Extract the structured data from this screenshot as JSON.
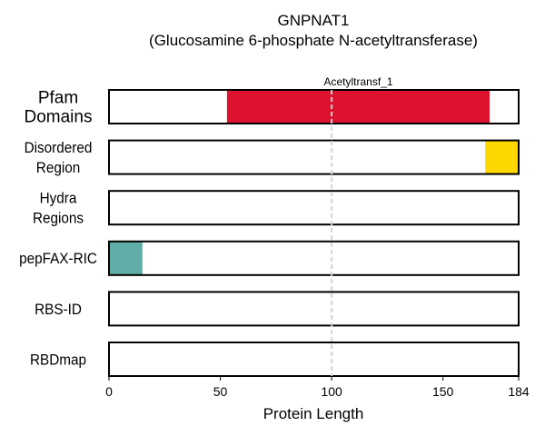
{
  "chart_data": {
    "type": "bar",
    "title": "GNPNAT1",
    "subtitle": "(Glucosamine 6-phosphate N-acetyltransferase)",
    "xlabel": "Protein Length",
    "xlim": [
      0,
      184
    ],
    "xticks": [
      0,
      50,
      100,
      150,
      184
    ],
    "reference_line": {
      "x": 100,
      "style": "dashed",
      "color": "#d3d3d3"
    },
    "tracks": [
      {
        "label": [
          "Pfam",
          "Domains"
        ],
        "emphasis": true,
        "segments": [
          {
            "start": 53,
            "end": 171,
            "color": "#dc122e",
            "annotation": "Acetyltransf_1"
          }
        ]
      },
      {
        "label": [
          "Disordered",
          "Region"
        ],
        "segments": [
          {
            "start": 169,
            "end": 184,
            "color": "#ffd700"
          }
        ]
      },
      {
        "label": [
          "Hydra",
          "Regions"
        ],
        "segments": []
      },
      {
        "label": [
          "pepFAX-RIC"
        ],
        "segments": [
          {
            "start": 0,
            "end": 15,
            "color": "#5fada6"
          }
        ]
      },
      {
        "label": [
          "RBS-ID"
        ],
        "segments": []
      },
      {
        "label": [
          "RBDmap"
        ],
        "segments": []
      }
    ]
  }
}
